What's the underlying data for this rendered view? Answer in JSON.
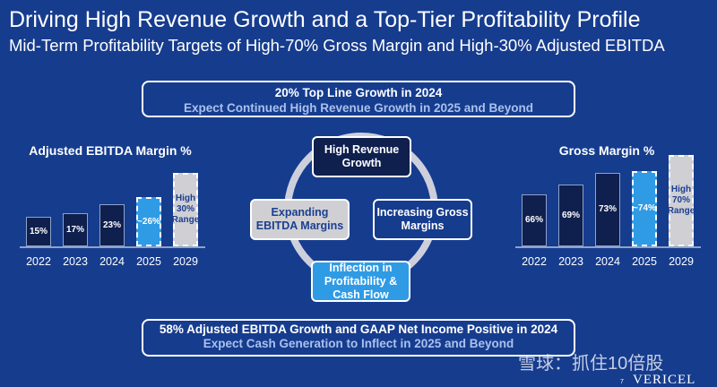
{
  "title": "Driving High Revenue Growth and a Top-Tier Profitability Profile",
  "subtitle": "Mid-Term Profitability Targets of High-70% Gross Margin and High-30% Adjusted EBITDA",
  "top_callout": {
    "line1": "20% Top Line Growth in 2024",
    "line2": "Expect Continued High Revenue Growth in 2025 and Beyond"
  },
  "bottom_callout": {
    "line1": "58% Adjusted EBITDA Growth and GAAP Net Income Positive in 2024",
    "line2": "Expect Cash Generation to Inflect in 2025 and Beyond"
  },
  "ebitda_chart": {
    "title": "Adjusted EBITDA Margin %",
    "years": [
      "2022",
      "2023",
      "2024",
      "2025",
      "2029"
    ],
    "labels": [
      "15%",
      "17%",
      "23%",
      "~26%",
      "High 30% Range"
    ]
  },
  "gross_chart": {
    "title": "Gross Margin %",
    "years": [
      "2022",
      "2023",
      "2024",
      "2025",
      "2029"
    ],
    "labels": [
      "66%",
      "69%",
      "73%",
      "~74%",
      "High 70% Range"
    ]
  },
  "cycle": {
    "top": "High Revenue Growth",
    "left": "Expanding EBITDA Margins",
    "right": "Increasing Gross Margins",
    "bottom": "Inflection in Profitability & Cash Flow"
  },
  "colors": {
    "background": "#163c8e",
    "actual": "#0f1f4e",
    "projected": "#2f9be5",
    "target": "#cfcfd4"
  },
  "page_number": "7",
  "logo": "VERICEL",
  "watermark": "雪球：抓住10倍股"
}
